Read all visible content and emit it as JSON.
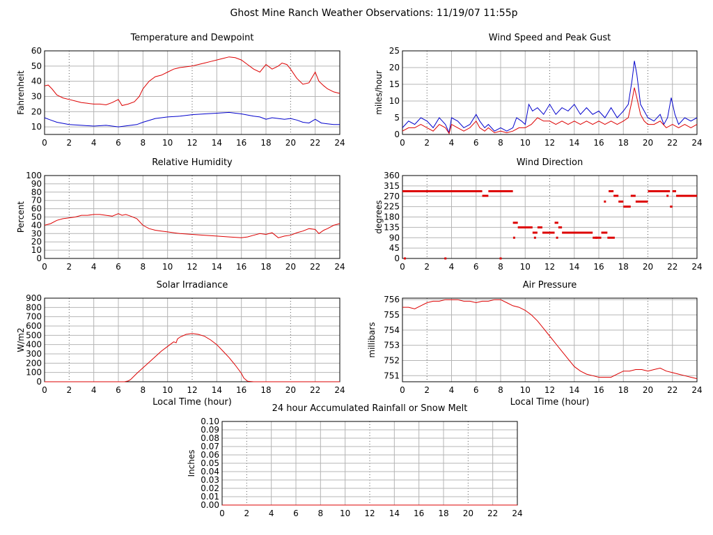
{
  "page_title": "Ghost Mine Ranch Weather Observations: 11/19/07 11:55p",
  "chart_data": [
    {
      "id": "temp",
      "type": "line",
      "title": "Temperature and Dewpoint",
      "ylabel": "Fahrenheit",
      "xlabel": "",
      "xlim": [
        0,
        24
      ],
      "ylim": [
        5,
        60
      ],
      "xticks": [
        0,
        2,
        4,
        6,
        8,
        10,
        12,
        14,
        16,
        18,
        20,
        22,
        24
      ],
      "yticks": [
        10,
        20,
        30,
        40,
        50,
        60
      ],
      "grid": true,
      "series": [
        {
          "color": "#dd0000",
          "x": [
            0,
            0.3,
            0.6,
            1,
            1.5,
            2,
            2.5,
            3,
            3.5,
            4,
            4.5,
            5,
            5.5,
            6,
            6.3,
            6.8,
            7.3,
            7.7,
            8,
            8.5,
            9,
            9.5,
            10,
            10.5,
            11,
            11.5,
            12,
            12.5,
            13,
            13.5,
            14,
            14.5,
            15,
            15.5,
            16,
            16.5,
            17,
            17.5,
            18,
            18.5,
            19,
            19.3,
            19.7,
            20,
            20.5,
            21,
            21.5,
            22,
            22.3,
            22.7,
            23,
            23.5,
            24
          ],
          "y": [
            37,
            37.5,
            35,
            31,
            29,
            28,
            27,
            26,
            25.5,
            25,
            25,
            24.5,
            26,
            28,
            24,
            25,
            26.5,
            30,
            35,
            40,
            43,
            44,
            46,
            48,
            49,
            49.5,
            50,
            51,
            52,
            53,
            54,
            55,
            56,
            55.5,
            54,
            51,
            48,
            46,
            51,
            48,
            50,
            52,
            51,
            48,
            42,
            38,
            39,
            46,
            40,
            37,
            35,
            33,
            32
          ]
        },
        {
          "color": "#0000cc",
          "x": [
            0,
            0.5,
            1,
            2,
            3,
            4,
            5,
            6,
            7,
            7.5,
            8,
            9,
            10,
            11,
            12,
            13,
            14,
            15,
            16,
            17,
            17.5,
            18,
            18.5,
            19,
            19.5,
            20,
            20.5,
            21,
            21.5,
            22,
            22.5,
            23,
            23.5,
            24
          ],
          "y": [
            16,
            14.5,
            13,
            11.5,
            11,
            10.5,
            11,
            10,
            11,
            11.5,
            13,
            15.5,
            16.5,
            17,
            18,
            18.5,
            19,
            19.5,
            18.5,
            17,
            16.5,
            15,
            16,
            15.5,
            15,
            15.5,
            14.5,
            13,
            12.5,
            15,
            12.5,
            12,
            11.5,
            11.5
          ]
        }
      ]
    },
    {
      "id": "wind",
      "type": "line",
      "title": "Wind Speed and Peak Gust",
      "ylabel": "miles/hour",
      "xlabel": "",
      "xlim": [
        0,
        24
      ],
      "ylim": [
        0,
        25
      ],
      "xticks": [
        0,
        2,
        4,
        6,
        8,
        10,
        12,
        14,
        16,
        18,
        20,
        22,
        24
      ],
      "yticks": [
        0,
        5,
        10,
        15,
        20,
        25
      ],
      "grid": true,
      "series": [
        {
          "color": "#0000cc",
          "x": [
            0,
            0.5,
            1,
            1.5,
            2,
            2.5,
            3,
            3.5,
            3.8,
            4,
            4.5,
            5,
            5.5,
            6,
            6.3,
            6.7,
            7,
            7.5,
            8,
            8.5,
            9,
            9.3,
            9.7,
            10,
            10.3,
            10.6,
            11,
            11.5,
            12,
            12.5,
            13,
            13.5,
            14,
            14.5,
            15,
            15.5,
            16,
            16.5,
            17,
            17.5,
            18,
            18.4,
            18.7,
            18.9,
            19.1,
            19.4,
            19.7,
            20,
            20.5,
            21,
            21.3,
            21.6,
            21.9,
            22.2,
            22.5,
            23,
            23.5,
            24
          ],
          "y": [
            2,
            4,
            3,
            5,
            4,
            2,
            5,
            3,
            0.5,
            5,
            4,
            2,
            3,
            6,
            4,
            2,
            3,
            1,
            2,
            1,
            2,
            5,
            4,
            3,
            9,
            7,
            8,
            6,
            9,
            6,
            8,
            7,
            9,
            6,
            8,
            6,
            7,
            5,
            8,
            5,
            7,
            9,
            16,
            22,
            18,
            9,
            7,
            5,
            4,
            6,
            3,
            5,
            11,
            6,
            3,
            5,
            4,
            5
          ]
        },
        {
          "color": "#dd0000",
          "x": [
            0,
            0.5,
            1,
            1.5,
            2,
            2.5,
            3,
            3.5,
            3.8,
            4,
            4.5,
            5,
            5.5,
            6,
            6.3,
            6.7,
            7,
            7.5,
            8,
            8.5,
            9,
            9.5,
            10,
            10.5,
            11,
            11.5,
            12,
            12.5,
            13,
            13.5,
            14,
            14.5,
            15,
            15.5,
            16,
            16.5,
            17,
            17.5,
            18,
            18.4,
            18.7,
            18.9,
            19.1,
            19.4,
            19.7,
            20,
            20.5,
            21,
            21.5,
            22,
            22.5,
            23,
            23.5,
            24
          ],
          "y": [
            1,
            2,
            2,
            3,
            2,
            1,
            3,
            2,
            0.3,
            3,
            2,
            1,
            2,
            4,
            2,
            1,
            2,
            0.5,
            1,
            0.5,
            1,
            2,
            2,
            3,
            5,
            4,
            4,
            3,
            4,
            3,
            4,
            3,
            4,
            3,
            4,
            3,
            4,
            3,
            4,
            5,
            10,
            14,
            11,
            6,
            4,
            3,
            3,
            4,
            2,
            3,
            2,
            3,
            2,
            3
          ]
        }
      ]
    },
    {
      "id": "humidity",
      "type": "line",
      "title": "Relative Humidity",
      "ylabel": "Percent",
      "xlabel": "",
      "xlim": [
        0,
        24
      ],
      "ylim": [
        0,
        100
      ],
      "xticks": [
        0,
        2,
        4,
        6,
        8,
        10,
        12,
        14,
        16,
        18,
        20,
        22,
        24
      ],
      "yticks": [
        0,
        10,
        20,
        30,
        40,
        50,
        60,
        70,
        80,
        90,
        100
      ],
      "grid": true,
      "series": [
        {
          "color": "#dd0000",
          "x": [
            0,
            0.5,
            1,
            1.5,
            2,
            2.5,
            3,
            3.5,
            4,
            4.5,
            5,
            5.5,
            6,
            6.3,
            6.6,
            7,
            7.5,
            8,
            8.5,
            9,
            9.5,
            10,
            11,
            12,
            13,
            14,
            15,
            16,
            16.5,
            17,
            17.5,
            18,
            18.5,
            19,
            19.5,
            20,
            20.5,
            21,
            21.5,
            22,
            22.3,
            22.7,
            23,
            23.5,
            24
          ],
          "y": [
            40,
            42,
            46,
            48,
            49,
            50,
            52,
            52,
            53,
            53,
            52,
            51,
            54,
            52,
            53,
            51,
            48,
            40,
            36,
            34,
            33,
            32,
            30,
            29,
            28,
            27,
            26,
            25,
            26,
            28,
            30,
            29,
            31,
            25,
            27,
            28,
            31,
            33,
            36,
            35,
            30,
            34,
            36,
            40,
            42
          ]
        }
      ]
    },
    {
      "id": "direction",
      "type": "scatter",
      "title": "Wind Direction",
      "ylabel": "degrees",
      "xlabel": "",
      "xlim": [
        0,
        24
      ],
      "ylim": [
        0,
        360
      ],
      "xticks": [
        0,
        2,
        4,
        6,
        8,
        10,
        12,
        14,
        16,
        18,
        20,
        22,
        24
      ],
      "yticks": [
        0,
        45,
        90,
        135,
        180,
        225,
        270,
        315,
        360
      ],
      "grid": true,
      "series": [
        {
          "color": "#dd0000",
          "segments": [
            [
              0,
              6.5,
              292
            ],
            [
              6.5,
              7,
              272
            ],
            [
              7,
              9,
              292
            ],
            [
              9,
              9.4,
              155
            ],
            [
              9.4,
              10.6,
              135
            ],
            [
              10.6,
              11,
              112
            ],
            [
              11,
              11.4,
              135
            ],
            [
              11.4,
              12.4,
              112
            ],
            [
              12.4,
              12.7,
              155
            ],
            [
              12.7,
              13,
              135
            ],
            [
              13,
              15.5,
              112
            ],
            [
              15.5,
              16.2,
              90
            ],
            [
              16.2,
              16.7,
              112
            ],
            [
              16.7,
              17.3,
              90
            ],
            [
              16.8,
              17.2,
              292
            ],
            [
              17.2,
              17.6,
              272
            ],
            [
              17.6,
              18,
              247
            ],
            [
              18,
              18.6,
              225
            ],
            [
              18.6,
              19,
              272
            ],
            [
              19,
              20,
              247
            ],
            [
              20,
              21.8,
              292
            ],
            [
              21.8,
              22,
              225
            ],
            [
              22,
              22.3,
              292
            ],
            [
              22.3,
              24,
              272
            ]
          ],
          "points": [
            [
              0.2,
              0
            ],
            [
              3.5,
              0
            ],
            [
              8,
              0
            ],
            [
              9.1,
              90
            ],
            [
              10.8,
              90
            ],
            [
              12.6,
              90
            ],
            [
              15.8,
              90
            ],
            [
              16.5,
              247
            ],
            [
              21.6,
              272
            ]
          ]
        }
      ]
    },
    {
      "id": "solar",
      "type": "area",
      "title": "Solar Irradiance",
      "ylabel": "W/m2",
      "xlabel": "Local Time (hour)",
      "xlim": [
        0,
        24
      ],
      "ylim": [
        0,
        900
      ],
      "xticks": [
        0,
        2,
        4,
        6,
        8,
        10,
        12,
        14,
        16,
        18,
        20,
        22,
        24
      ],
      "yticks": [
        0,
        100,
        200,
        300,
        400,
        500,
        600,
        700,
        800,
        900
      ],
      "grid": true,
      "series": [
        {
          "color": "#dd0000",
          "x": [
            0,
            6.5,
            6.8,
            7,
            7.5,
            8,
            8.5,
            9,
            9.5,
            10,
            10.5,
            10.7,
            10.8,
            11,
            11.5,
            12,
            12.5,
            13,
            13.5,
            14,
            14.5,
            15,
            15.5,
            16,
            16.2,
            16.5,
            17,
            24
          ],
          "y": [
            0,
            0,
            8,
            25,
            90,
            150,
            210,
            270,
            330,
            380,
            430,
            420,
            460,
            480,
            510,
            520,
            510,
            490,
            450,
            400,
            330,
            260,
            180,
            90,
            40,
            5,
            0,
            0
          ]
        }
      ]
    },
    {
      "id": "pressure",
      "type": "line",
      "title": "Air Pressure",
      "ylabel": "millibars",
      "xlabel": "Local Time (hour)",
      "xlim": [
        0,
        24
      ],
      "ylim": [
        750.6,
        756.1
      ],
      "xticks": [
        0,
        2,
        4,
        6,
        8,
        10,
        12,
        14,
        16,
        18,
        20,
        22,
        24
      ],
      "yticks": [
        751,
        752,
        753,
        754,
        755,
        756
      ],
      "grid": true,
      "series": [
        {
          "color": "#dd0000",
          "x": [
            0,
            0.5,
            1,
            1.5,
            2,
            2.5,
            3,
            3.5,
            4,
            4.5,
            5,
            5.5,
            6,
            6.5,
            7,
            7.5,
            8,
            8.5,
            9,
            9.5,
            10,
            10.5,
            11,
            11.5,
            12,
            12.5,
            13,
            13.5,
            14,
            14.5,
            15,
            15.5,
            16,
            16.5,
            17,
            17.5,
            18,
            18.5,
            19,
            19.5,
            20,
            20.5,
            21,
            21.5,
            22,
            22.5,
            23,
            23.5,
            24
          ],
          "y": [
            755.5,
            755.5,
            755.4,
            755.6,
            755.8,
            755.9,
            755.9,
            756,
            756,
            756,
            755.9,
            755.9,
            755.8,
            755.9,
            755.9,
            756,
            756,
            755.8,
            755.6,
            755.5,
            755.3,
            755,
            754.6,
            754.1,
            753.6,
            753.1,
            752.6,
            752.1,
            751.6,
            751.3,
            751.1,
            751,
            750.9,
            750.9,
            750.9,
            751.1,
            751.3,
            751.3,
            751.4,
            751.4,
            751.3,
            751.4,
            751.5,
            751.3,
            751.2,
            751.1,
            751,
            750.9,
            750.8
          ]
        }
      ]
    },
    {
      "id": "rain",
      "type": "line",
      "title": "24 hour Accumulated Rainfall or Snow Melt",
      "ylabel": "Inches",
      "xlabel": "",
      "xlim": [
        0,
        24
      ],
      "ylim": [
        0,
        0.1
      ],
      "xticks": [
        0,
        2,
        4,
        6,
        8,
        10,
        12,
        14,
        16,
        18,
        20,
        22,
        24
      ],
      "yticks": [
        0,
        0.01,
        0.02,
        0.03,
        0.04,
        0.05,
        0.06,
        0.07,
        0.08,
        0.09,
        0.1
      ],
      "ytick_labels": [
        "0.00",
        "0.01",
        "0.02",
        "0.03",
        "0.04",
        "0.05",
        "0.06",
        "0.07",
        "0.08",
        "0.09",
        "0.10"
      ],
      "grid": true,
      "series": [
        {
          "color": "#dd0000",
          "x": [
            0,
            24
          ],
          "y": [
            0,
            0
          ]
        }
      ]
    }
  ]
}
